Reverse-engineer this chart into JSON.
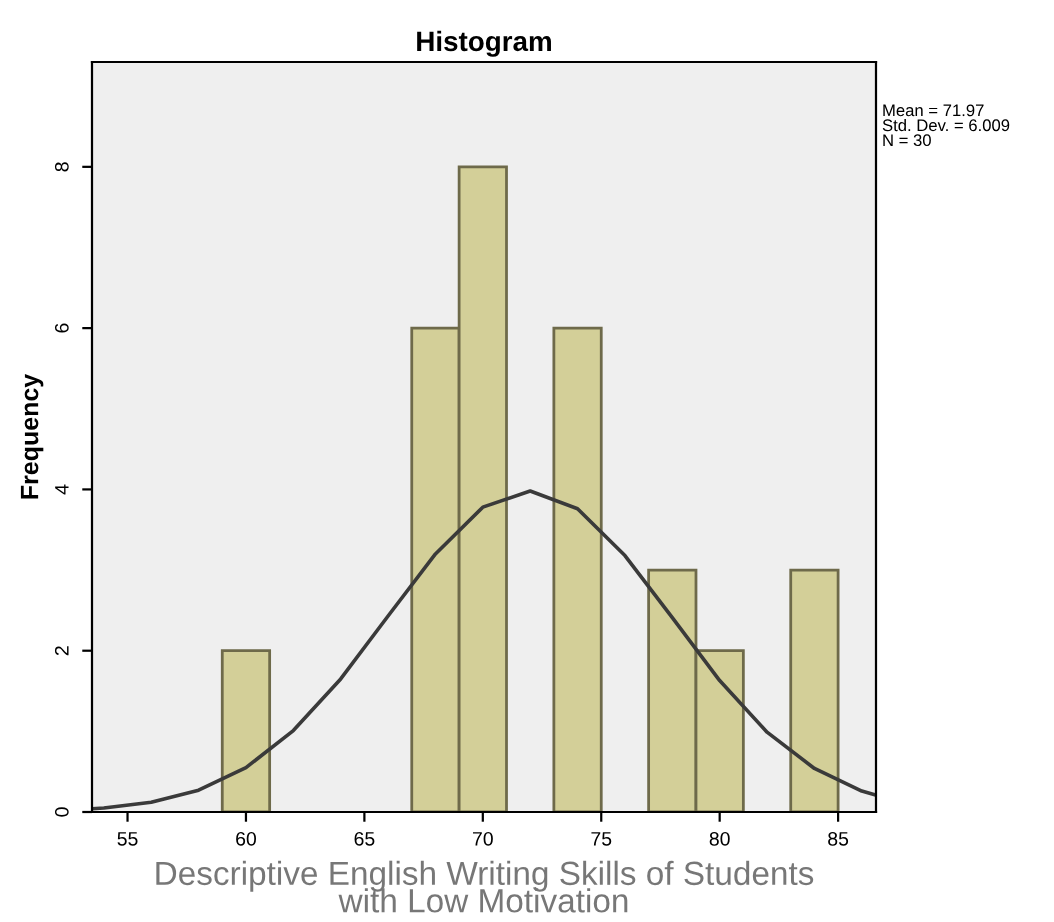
{
  "chart_data": {
    "type": "histogram",
    "title": "Histogram",
    "xlabel": "Descriptive English Writing Skills of Students\nwith Low Motivation",
    "ylabel": "Frequency",
    "series": [
      {
        "color": "#d3cf98",
        "bins": [
          59,
          61,
          63,
          65,
          67,
          69,
          71,
          73,
          75,
          77,
          79,
          81,
          83,
          85
        ],
        "values": [
          2,
          0,
          0,
          0,
          6,
          8,
          0,
          6,
          0,
          3,
          2,
          0,
          3
        ]
      },
      {
        "type": "line",
        "color": "#3a3a3a",
        "x": [
          53.5,
          54,
          56,
          58,
          60,
          62,
          64,
          66,
          68,
          70,
          72,
          74,
          76,
          78,
          80,
          82,
          84,
          86,
          86.6
        ],
        "values": [
          0.04,
          0.05,
          0.12,
          0.27,
          0.55,
          1.01,
          1.65,
          2.43,
          3.2,
          3.78,
          3.98,
          3.76,
          3.18,
          2.41,
          1.63,
          0.99,
          0.54,
          0.26,
          0.21
        ]
      }
    ],
    "xlim": [
      53.5,
      86.6
    ],
    "xticks": [
      55,
      60,
      65,
      70,
      75,
      80,
      85
    ],
    "ylim": [
      0,
      9.3
    ],
    "yticks": [
      0,
      2,
      4,
      6,
      8
    ],
    "grid": false,
    "legend": false,
    "annotations": [
      "Mean = 71.97\nStd. Dev. = 6.009\nN = 30"
    ]
  }
}
